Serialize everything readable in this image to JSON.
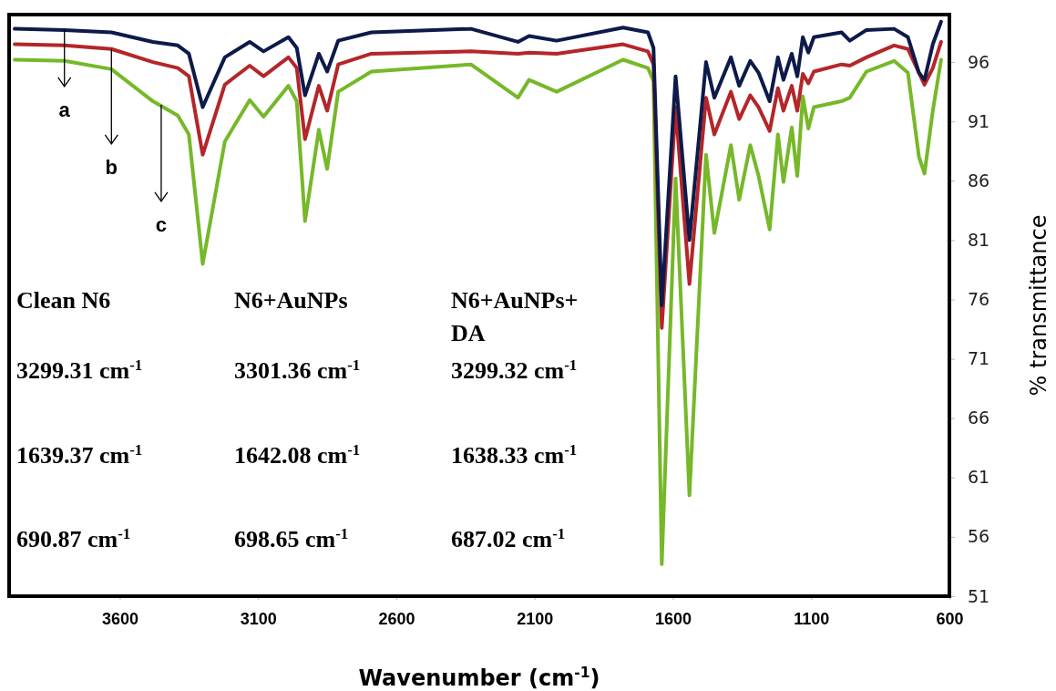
{
  "chart_data": {
    "type": "line",
    "xlabel": "Wavenumber (cm$^{-1}$)",
    "ylabel": "% transmittance",
    "xlim": [
      4000,
      600
    ],
    "xticks": [
      3600,
      3100,
      2600,
      2100,
      1600,
      1100,
      600
    ],
    "ylim": [
      51,
      100
    ],
    "yticks": [
      51,
      56,
      61,
      66,
      71,
      76,
      81,
      86,
      91,
      96
    ],
    "grid": false,
    "marker": "none",
    "line_style": "solid",
    "x": [
      3980,
      3800,
      3630,
      3480,
      3390,
      3350,
      3300,
      3220,
      3130,
      3080,
      2990,
      2960,
      2930,
      2880,
      2850,
      2810,
      2690,
      2330,
      2160,
      2120,
      2020,
      1780,
      1690,
      1670,
      1640,
      1590,
      1540,
      1480,
      1450,
      1390,
      1360,
      1320,
      1290,
      1250,
      1220,
      1200,
      1170,
      1150,
      1130,
      1110,
      1090,
      990,
      960,
      900,
      800,
      750,
      710,
      690,
      660,
      630
    ],
    "series": [
      {
        "color": "#0d1a4a",
        "values": [
          98.8,
          98.7,
          98.5,
          97.7,
          97.4,
          96.7,
          92.2,
          96.4,
          97.7,
          96.9,
          98.1,
          97.2,
          93.2,
          96.7,
          95.2,
          97.8,
          98.5,
          98.8,
          97.7,
          98.2,
          97.8,
          98.9,
          98.5,
          97.2,
          75.5,
          94.8,
          81.0,
          96.0,
          93.0,
          96.4,
          94.0,
          96.1,
          95.1,
          92.7,
          96.4,
          94.5,
          96.7,
          94.8,
          98.1,
          96.8,
          98.1,
          98.5,
          97.8,
          98.7,
          98.8,
          98.1,
          95.1,
          94.5,
          97.5,
          99.4
        ]
      },
      {
        "color": "#b3262a",
        "values": [
          97.5,
          97.4,
          97.1,
          96.0,
          95.5,
          94.8,
          88.2,
          94.1,
          95.7,
          94.8,
          96.4,
          95.5,
          89.5,
          94.0,
          91.9,
          95.8,
          96.7,
          96.9,
          96.7,
          96.8,
          96.7,
          97.5,
          96.9,
          95.8,
          73.6,
          92.2,
          77.3,
          93.0,
          89.9,
          93.5,
          91.2,
          93.2,
          92.2,
          90.2,
          93.8,
          91.9,
          94.0,
          91.9,
          95.0,
          94.2,
          95.2,
          95.8,
          95.7,
          96.4,
          97.4,
          97.1,
          95.1,
          94.1,
          95.5,
          97.7
        ]
      },
      {
        "color": "#76b82a",
        "values": [
          96.2,
          96.1,
          95.4,
          92.7,
          91.5,
          89.9,
          79.0,
          89.3,
          92.8,
          91.4,
          94.0,
          92.7,
          82.6,
          90.3,
          87.0,
          93.5,
          95.2,
          95.8,
          93.0,
          94.5,
          93.5,
          96.2,
          95.5,
          94.4,
          53.7,
          86.2,
          59.5,
          88.2,
          81.6,
          89.0,
          84.4,
          89.0,
          86.4,
          81.9,
          89.9,
          85.9,
          90.5,
          86.4,
          93.1,
          90.4,
          92.2,
          92.7,
          93.0,
          95.2,
          96.1,
          95.1,
          88.0,
          86.6,
          91.9,
          96.2
        ]
      }
    ],
    "annotations": [
      {
        "text": "a",
        "x": 3800,
        "y": 98.7
      },
      {
        "text": "b",
        "x": 3630,
        "y": 97.1
      },
      {
        "text": "c",
        "x": 3450,
        "y": 92.4
      },
      "Clean N6",
      "N6+AuNPs",
      "N6+AuNPs+ DA",
      "3299.31 cm$^{-1}$",
      "3301.36 cm$^{-1}$",
      "3299.32 cm$^{-1}$",
      "1639.37 cm$^{-1}$",
      "1642.08 cm$^{-1}$",
      "1638.33 cm$^{-1}$",
      "690.87 cm$^{-1}$",
      "698.65 cm$^{-1}$",
      "687.02 cm$^{-1}$"
    ]
  }
}
